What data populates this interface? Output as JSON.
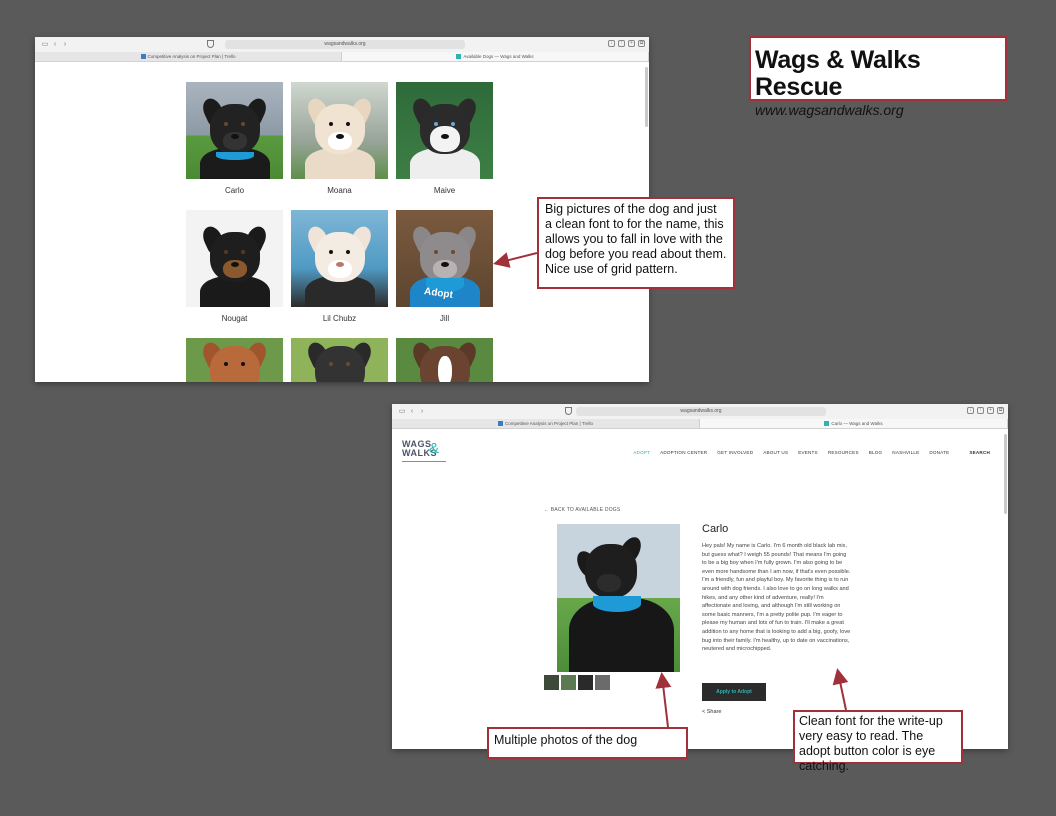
{
  "header": {
    "title": "Wags & Walks Rescue",
    "url": "www.wagsandwalks.org"
  },
  "browser1": {
    "address": "wagsandwalks.org",
    "tabs": [
      "Competitive Analysis on Project Plan | Trello",
      "Available Dogs — Wags and Walks"
    ],
    "dogs": [
      "Carlo",
      "Moana",
      "Maive",
      "Nougat",
      "Lil Chubz",
      "Jill",
      "",
      "",
      ""
    ],
    "badge_text": "Adopt"
  },
  "browser2": {
    "address": "wagsandwalks.org",
    "tabs": [
      "Competitive Analysis on Project Plan | Trello",
      "Carlo — Wags and Walks"
    ],
    "logo_line1": "WAGS",
    "logo_amp": "&",
    "logo_line2": "WALKS",
    "nav": [
      "ADOPT",
      "ADOPTION CENTER",
      "GET INVOLVED",
      "ABOUT US",
      "EVENTS",
      "RESOURCES",
      "BLOG",
      "NASHVILLE",
      "DONATE"
    ],
    "nav_search": "SEARCH",
    "back_link": "← BACK TO AVAILABLE DOGS",
    "dog_name": "Carlo",
    "bio": "Hey pals! My name is Carlo. I'm 6 month old black lab mix, but guess what? I weigh 55 pounds! That means I'm going to be a big boy when I'm fully grown. I'm also going to be even more handsome than I am now, if that's even possible. I'm a friendly, fun and playful boy. My favorite thing is to run around with dog friends. I also love to go on long walks and hikes, and any other kind of adventure, really! I'm affectionate and loving, and although I'm still working on some basic manners, I'm a pretty polite pup. I'm eager to please my human and lots of fun to train. I'll make a great addition to any home that is looking to add a big, goofy, love bug into their family. I'm healthy, up to date on vaccinations, neutered and microchipped.",
    "apply_label": "Apply to Adopt",
    "share_label": "Share"
  },
  "callouts": {
    "grid_note": "Big pictures of the dog and just a clean font to for the name, this allows you to fall in love with the dog before you read about them. Nice use of grid pattern.",
    "photos_note": "Multiple photos of the dog",
    "font_note": "Clean font for the write-up very easy to read. The adopt button color is eye catching."
  },
  "colors": {
    "accent": "#2fb3b2",
    "callout_border": "#a0303a",
    "background": "#5a5a5a",
    "button": "#2b2b2b"
  }
}
